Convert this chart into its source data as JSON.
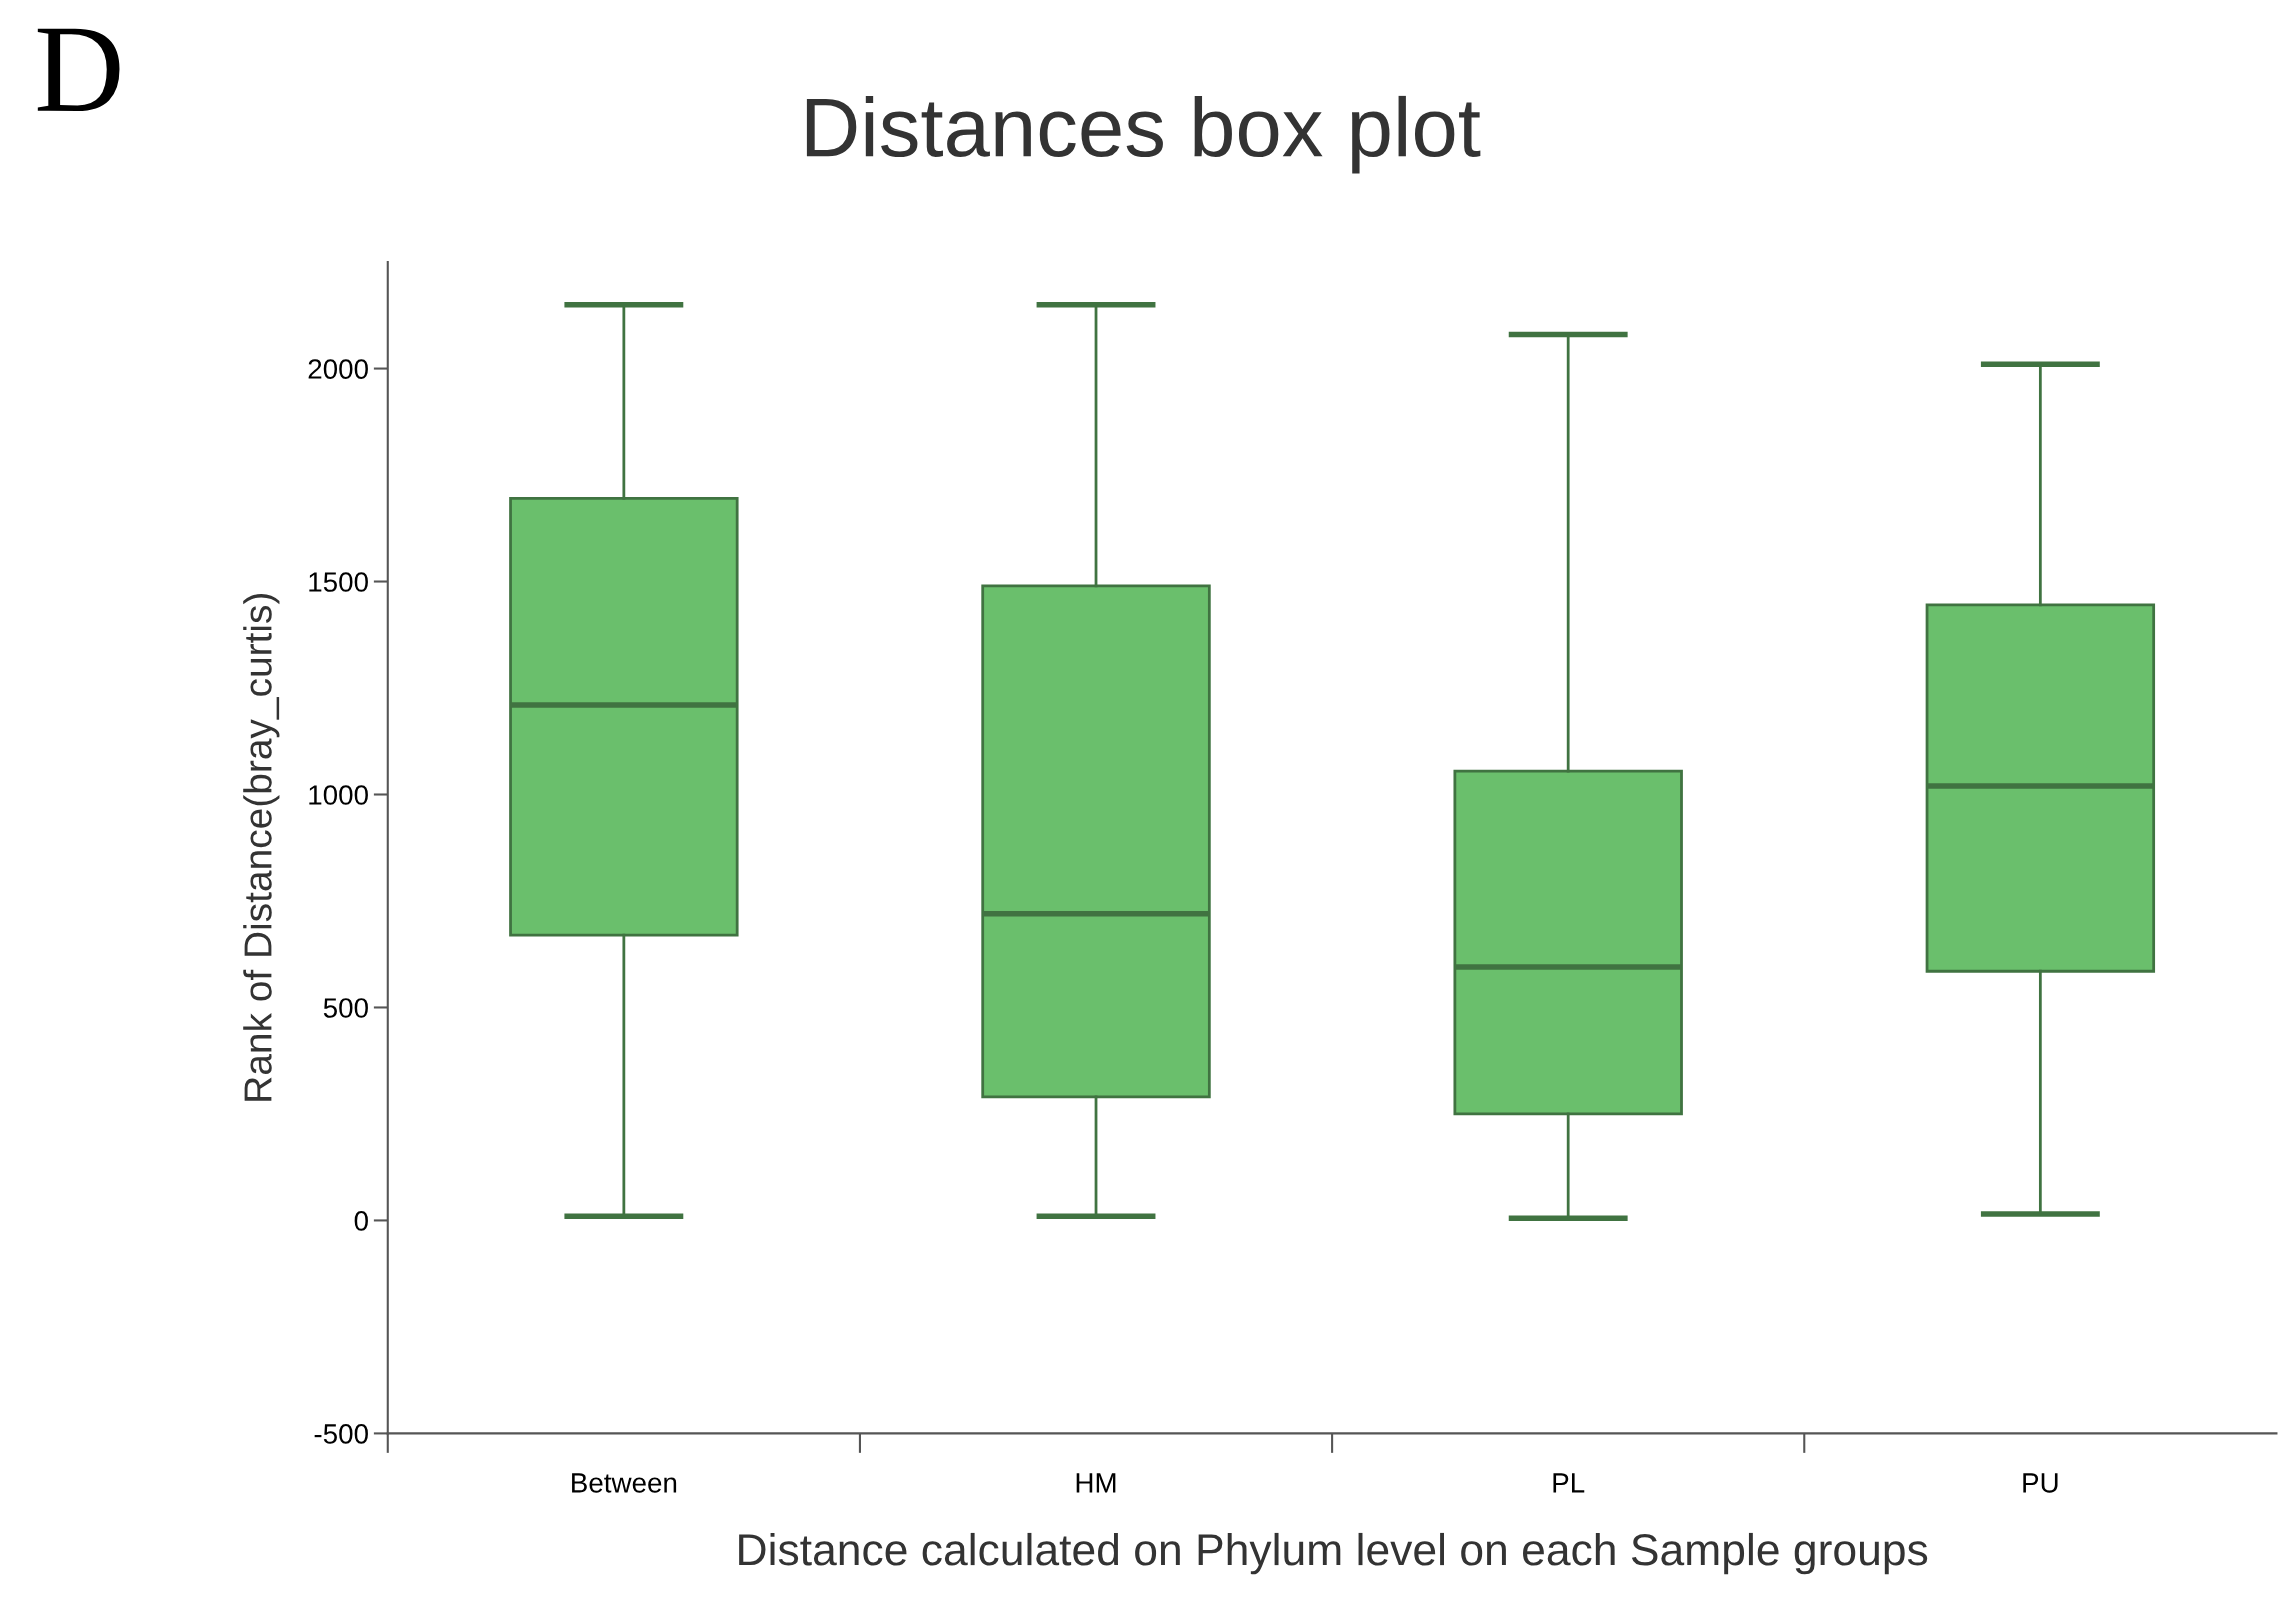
{
  "chart_data": {
    "type": "box",
    "title": "Distances box plot",
    "xlabel": "Distance calculated on Phylum level on each Sample groups",
    "ylabel": "Rank of Distance(bray_curtis)",
    "categories": [
      "Between",
      "HM",
      "PL",
      "PU"
    ],
    "color": "#6abf6c",
    "boxes": [
      {
        "low": 10,
        "q1": 670,
        "median": 1210,
        "q3": 1695,
        "high": 2150
      },
      {
        "low": 10,
        "q1": 290,
        "median": 720,
        "q3": 1490,
        "high": 2150
      },
      {
        "low": 5,
        "q1": 250,
        "median": 595,
        "q3": 1055,
        "high": 2080
      },
      {
        "low": 15,
        "q1": 585,
        "median": 1020,
        "q3": 1445,
        "high": 2010
      }
    ],
    "ylim": [
      -500,
      2250
    ],
    "yticks": [
      -500,
      0,
      500,
      1000,
      1500,
      2000
    ],
    "grid": false,
    "annotations": [
      "D"
    ]
  }
}
